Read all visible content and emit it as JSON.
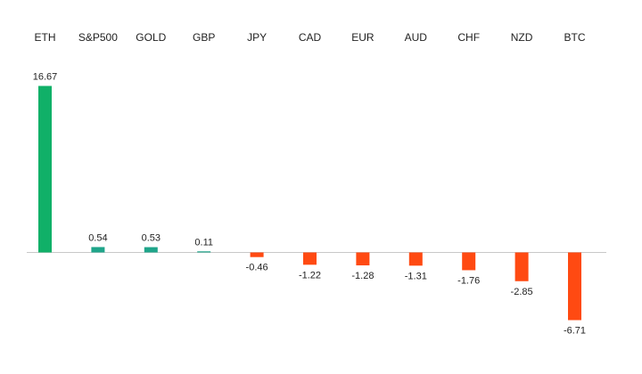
{
  "chart_data": {
    "type": "bar",
    "title": "",
    "xlabel": "",
    "ylabel": "",
    "categories": [
      "ETH",
      "S&P500",
      "GOLD",
      "GBP",
      "JPY",
      "CAD",
      "EUR",
      "AUD",
      "CHF",
      "NZD",
      "BTC"
    ],
    "values": [
      16.67,
      0.54,
      0.53,
      0.11,
      -0.46,
      -1.22,
      -1.28,
      -1.31,
      -1.76,
      -2.85,
      -6.71
    ],
    "value_labels": [
      "16.67",
      "0.54",
      "0.53",
      "0.11",
      "-0.46",
      "-1.22",
      "-1.28",
      "-1.31",
      "-1.76",
      "-2.85",
      "-6.71"
    ],
    "ylim": [
      -6.71,
      16.67
    ],
    "grid": false,
    "legend": "none",
    "colors": {
      "positive_large": "#10B068",
      "positive_small": "#1FA58A",
      "negative": "#FF4A12",
      "axis": "#C8C8C8"
    }
  }
}
